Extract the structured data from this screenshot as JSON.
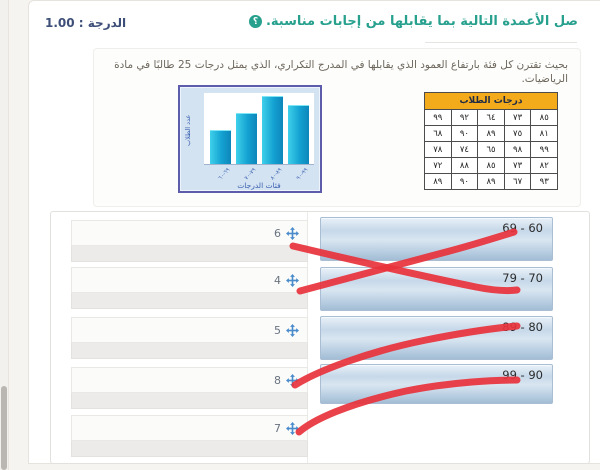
{
  "page": {
    "grade_label": "الدرجة : 1.00",
    "title": "صل الأعمدة التالية بما يقابلها من إجابات مناسبة.",
    "help_icon_glyph": "؟",
    "subtitle": "بحيث تقترن كل فئة بارتفاع العمود الذي يقابلها في المدرج التكراري، الذي يمثل درجات 25 طالبًا في مادة الرياضيات."
  },
  "colors": {
    "accent_teal": "#27a08e",
    "grade_navy": "#3d4e78",
    "table_header_amber": "#f3ab1c",
    "bar_cyan": "#14a2d2",
    "red_pen": "#e8323c",
    "handle_blue": "#4a8ccb"
  },
  "chart_data": {
    "type": "bar",
    "title": "",
    "categories": [
      "٦٩-٦٠",
      "٧٩-٧٠",
      "٨٩-٨٠",
      "٩٩-٩٠"
    ],
    "values": [
      4,
      6,
      8,
      7
    ],
    "xlabel": "فئات الدرجات",
    "ylabel": "عدد الطلاب",
    "ylim": [
      0,
      8.5
    ],
    "grid": false,
    "legend": "none"
  },
  "grades_table": {
    "header": "درجات الطلاب",
    "rows": [
      [
        "٨٥",
        "٧٣",
        "٦٤",
        "٩٢",
        "٩٩"
      ],
      [
        "٨١",
        "٧٥",
        "٨٩",
        "٩٠",
        "٦٨"
      ],
      [
        "٩٩",
        "٩٨",
        "٦٥",
        "٧٤",
        "٧٨"
      ],
      [
        "٨٢",
        "٧٣",
        "٨٥",
        "٨٨",
        "٧٢"
      ],
      [
        "٩٣",
        "٦٧",
        "٨٩",
        "٩٠",
        "٨٩"
      ]
    ]
  },
  "matching": {
    "items": [
      "6",
      "4",
      "5",
      "8",
      "7"
    ],
    "targets": [
      "69 - 60",
      "79 - 70",
      "89 - 80",
      "99 - 90"
    ],
    "connections": [
      {
        "from": "6",
        "to": "79 - 70"
      },
      {
        "from": "4",
        "to": "69 - 60"
      },
      {
        "from": "8",
        "to": "89 - 80"
      },
      {
        "from": "7",
        "to": "99 - 90"
      }
    ]
  }
}
